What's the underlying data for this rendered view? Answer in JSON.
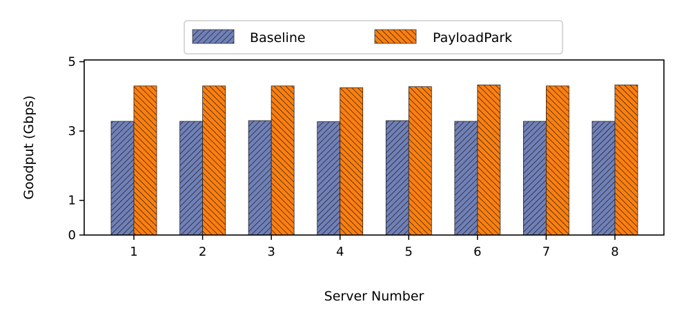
{
  "chart_data": {
    "type": "bar",
    "xlabel": "Server Number",
    "ylabel": "Goodput (Gbps)",
    "categories": [
      "1",
      "2",
      "3",
      "4",
      "5",
      "6",
      "7",
      "8"
    ],
    "yticks": [
      "0",
      "1",
      "3",
      "5"
    ],
    "ytick_values": [
      0,
      1,
      3,
      5
    ],
    "ylim": [
      0,
      5.05
    ],
    "series": [
      {
        "name": "Baseline",
        "color": "#7080b8",
        "hatch": "////",
        "values": [
          3.28,
          3.28,
          3.3,
          3.27,
          3.3,
          3.28,
          3.28,
          3.28
        ]
      },
      {
        "name": "PayloadPark",
        "color": "#ff7f0e",
        "hatch": "\\\\\\\\",
        "values": [
          4.3,
          4.3,
          4.3,
          4.25,
          4.28,
          4.33,
          4.3,
          4.33
        ]
      }
    ],
    "legend_position": "top-center",
    "grid": false
  }
}
